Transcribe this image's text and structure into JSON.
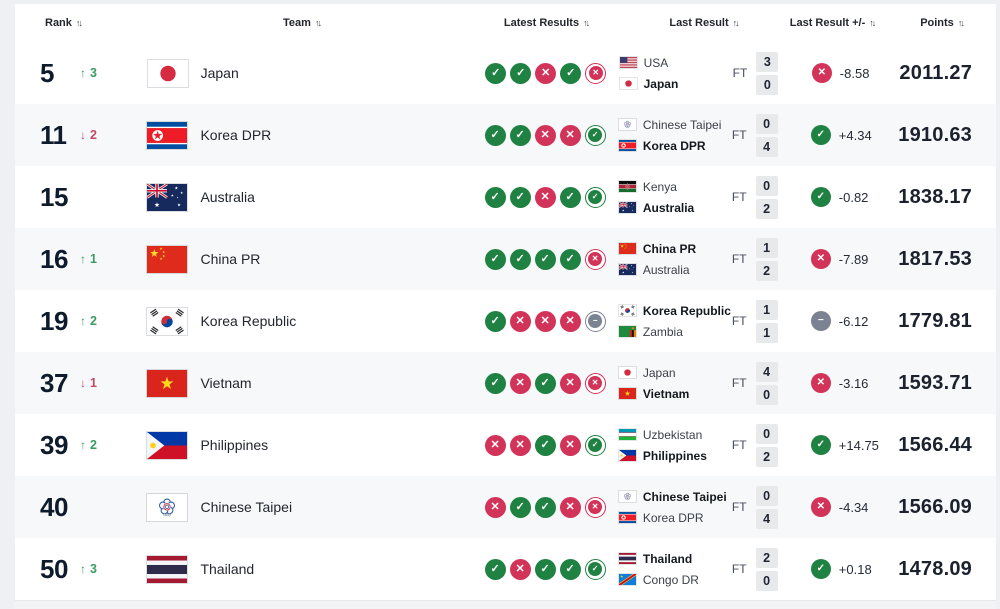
{
  "header": {
    "columns": [
      {
        "label": "Rank"
      },
      {
        "label": "Team"
      },
      {
        "label": "Latest Results"
      },
      {
        "label": "Last Result"
      },
      {
        "label": "Last Result +/-"
      },
      {
        "label": "Points"
      }
    ],
    "sort_glyph": "↑↓"
  },
  "icon_glyphs": {
    "W": "✓",
    "L": "✕",
    "D": "−",
    "up": "↑",
    "down": "↓"
  },
  "colors": {
    "win": "#1f8242",
    "loss": "#d23358",
    "draw": "#7b8291",
    "rank_up": "#3a9b62",
    "rank_down": "#c24a63"
  },
  "rows": [
    {
      "rank": "5",
      "movement": {
        "dir": "up",
        "value": "3"
      },
      "team": {
        "name": "Japan",
        "flag": "japan"
      },
      "latest_results": [
        "W",
        "W",
        "L",
        "W",
        "L"
      ],
      "last_result": {
        "status": "FT",
        "teams": [
          {
            "name": "USA",
            "flag": "usa",
            "bold": false
          },
          {
            "name": "Japan",
            "flag": "japan",
            "bold": true
          }
        ],
        "scores": [
          "3",
          "0"
        ]
      },
      "delta": {
        "outcome": "L",
        "value": "-8.58"
      },
      "points": "2011.27"
    },
    {
      "rank": "11",
      "movement": {
        "dir": "down",
        "value": "2"
      },
      "team": {
        "name": "Korea DPR",
        "flag": "korea-dpr"
      },
      "latest_results": [
        "W",
        "W",
        "L",
        "L",
        "W"
      ],
      "last_result": {
        "status": "FT",
        "teams": [
          {
            "name": "Chinese Taipei",
            "flag": "chinese-taipei",
            "bold": false
          },
          {
            "name": "Korea DPR",
            "flag": "korea-dpr",
            "bold": true
          }
        ],
        "scores": [
          "0",
          "4"
        ]
      },
      "delta": {
        "outcome": "W",
        "value": "+4.34"
      },
      "points": "1910.63"
    },
    {
      "rank": "15",
      "movement": null,
      "team": {
        "name": "Australia",
        "flag": "australia"
      },
      "latest_results": [
        "W",
        "W",
        "L",
        "W",
        "W"
      ],
      "last_result": {
        "status": "FT",
        "teams": [
          {
            "name": "Kenya",
            "flag": "kenya",
            "bold": false
          },
          {
            "name": "Australia",
            "flag": "australia",
            "bold": true
          }
        ],
        "scores": [
          "0",
          "2"
        ]
      },
      "delta": {
        "outcome": "W",
        "value": "-0.82"
      },
      "points": "1838.17"
    },
    {
      "rank": "16",
      "movement": {
        "dir": "up",
        "value": "1"
      },
      "team": {
        "name": "China PR",
        "flag": "china"
      },
      "latest_results": [
        "W",
        "W",
        "W",
        "W",
        "L"
      ],
      "last_result": {
        "status": "FT",
        "teams": [
          {
            "name": "China PR",
            "flag": "china",
            "bold": true
          },
          {
            "name": "Australia",
            "flag": "australia",
            "bold": false
          }
        ],
        "scores": [
          "1",
          "2"
        ]
      },
      "delta": {
        "outcome": "L",
        "value": "-7.89"
      },
      "points": "1817.53"
    },
    {
      "rank": "19",
      "movement": {
        "dir": "up",
        "value": "2"
      },
      "team": {
        "name": "Korea Republic",
        "flag": "korea-republic"
      },
      "latest_results": [
        "W",
        "L",
        "L",
        "L",
        "D"
      ],
      "last_result": {
        "status": "FT",
        "teams": [
          {
            "name": "Korea Republic",
            "flag": "korea-republic",
            "bold": true
          },
          {
            "name": "Zambia",
            "flag": "zambia",
            "bold": false
          }
        ],
        "scores": [
          "1",
          "1"
        ]
      },
      "delta": {
        "outcome": "D",
        "value": "-6.12"
      },
      "points": "1779.81"
    },
    {
      "rank": "37",
      "movement": {
        "dir": "down",
        "value": "1"
      },
      "team": {
        "name": "Vietnam",
        "flag": "vietnam"
      },
      "latest_results": [
        "W",
        "L",
        "W",
        "L",
        "L"
      ],
      "last_result": {
        "status": "FT",
        "teams": [
          {
            "name": "Japan",
            "flag": "japan",
            "bold": false
          },
          {
            "name": "Vietnam",
            "flag": "vietnam",
            "bold": true
          }
        ],
        "scores": [
          "4",
          "0"
        ]
      },
      "delta": {
        "outcome": "L",
        "value": "-3.16"
      },
      "points": "1593.71"
    },
    {
      "rank": "39",
      "movement": {
        "dir": "up",
        "value": "2"
      },
      "team": {
        "name": "Philippines",
        "flag": "philippines"
      },
      "latest_results": [
        "L",
        "L",
        "W",
        "L",
        "W"
      ],
      "last_result": {
        "status": "FT",
        "teams": [
          {
            "name": "Uzbekistan",
            "flag": "uzbekistan",
            "bold": false
          },
          {
            "name": "Philippines",
            "flag": "philippines",
            "bold": true
          }
        ],
        "scores": [
          "0",
          "2"
        ]
      },
      "delta": {
        "outcome": "W",
        "value": "+14.75"
      },
      "points": "1566.44"
    },
    {
      "rank": "40",
      "movement": null,
      "team": {
        "name": "Chinese Taipei",
        "flag": "chinese-taipei"
      },
      "latest_results": [
        "L",
        "W",
        "W",
        "L",
        "L"
      ],
      "last_result": {
        "status": "FT",
        "teams": [
          {
            "name": "Chinese Taipei",
            "flag": "chinese-taipei",
            "bold": true
          },
          {
            "name": "Korea DPR",
            "flag": "korea-dpr",
            "bold": false
          }
        ],
        "scores": [
          "0",
          "4"
        ]
      },
      "delta": {
        "outcome": "L",
        "value": "-4.34"
      },
      "points": "1566.09"
    },
    {
      "rank": "50",
      "movement": {
        "dir": "up",
        "value": "3"
      },
      "team": {
        "name": "Thailand",
        "flag": "thailand"
      },
      "latest_results": [
        "W",
        "L",
        "W",
        "W",
        "W"
      ],
      "last_result": {
        "status": "FT",
        "teams": [
          {
            "name": "Thailand",
            "flag": "thailand",
            "bold": true
          },
          {
            "name": "Congo DR",
            "flag": "congo-dr",
            "bold": false
          }
        ],
        "scores": [
          "2",
          "0"
        ]
      },
      "delta": {
        "outcome": "W",
        "value": "+0.18"
      },
      "points": "1478.09"
    }
  ]
}
